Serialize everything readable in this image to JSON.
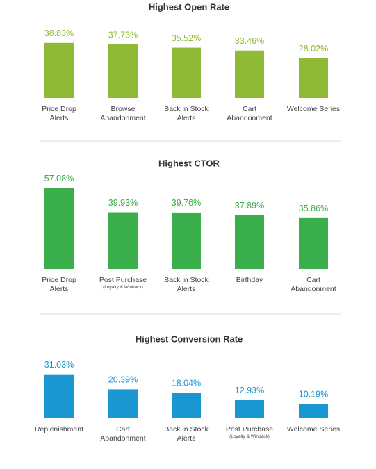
{
  "chart_data": [
    {
      "type": "bar",
      "title": "Highest Open Rate",
      "color": "#8fba35",
      "categories": [
        "Price Drop Alerts",
        "Browse Abandonment",
        "Back in Stock Alerts",
        "Cart Abandonment",
        "Welcome Series"
      ],
      "category_notes": [
        null,
        null,
        null,
        null,
        null
      ],
      "values": [
        38.83,
        37.73,
        35.52,
        33.46,
        28.02
      ],
      "value_labels": [
        "38.83%",
        "37.73%",
        "35.52%",
        "33.46%",
        "28.02%"
      ]
    },
    {
      "type": "bar",
      "title": "Highest CTOR",
      "color": "#3aae4a",
      "categories": [
        "Price Drop Alerts",
        "Post Purchase",
        "Back in Stock Alerts",
        "Birthday",
        "Cart Abandonment"
      ],
      "category_notes": [
        null,
        "(Loyalty & Winback)",
        null,
        null,
        null
      ],
      "values": [
        57.08,
        39.93,
        39.76,
        37.89,
        35.86
      ],
      "value_labels": [
        "57.08%",
        "39.93%",
        "39.76%",
        "37.89%",
        "35.86%"
      ]
    },
    {
      "type": "bar",
      "title": "Highest Conversion Rate",
      "color": "#1a96d0",
      "categories": [
        "Replenishment",
        "Cart Abandonment",
        "Back in Stock Alerts",
        "Post Purchase",
        "Welcome Series"
      ],
      "category_notes": [
        null,
        null,
        null,
        "(Loyalty & Winback)",
        null
      ],
      "values": [
        31.03,
        20.39,
        18.04,
        12.93,
        10.19
      ],
      "value_labels": [
        "31.03%",
        "20.39%",
        "18.04%",
        "12.93%",
        "10.19%"
      ]
    }
  ]
}
